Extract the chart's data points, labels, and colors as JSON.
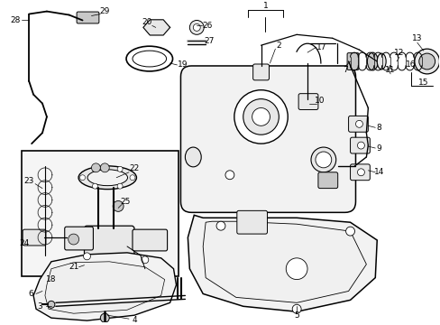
{
  "bg_color": "#ffffff",
  "figsize": [
    4.89,
    3.6
  ],
  "dpi": 100,
  "gray_fill": "#e8e8e8",
  "light_gray": "#f2f2f2",
  "dark_gray": "#c8c8c8",
  "line_color": "#000000"
}
